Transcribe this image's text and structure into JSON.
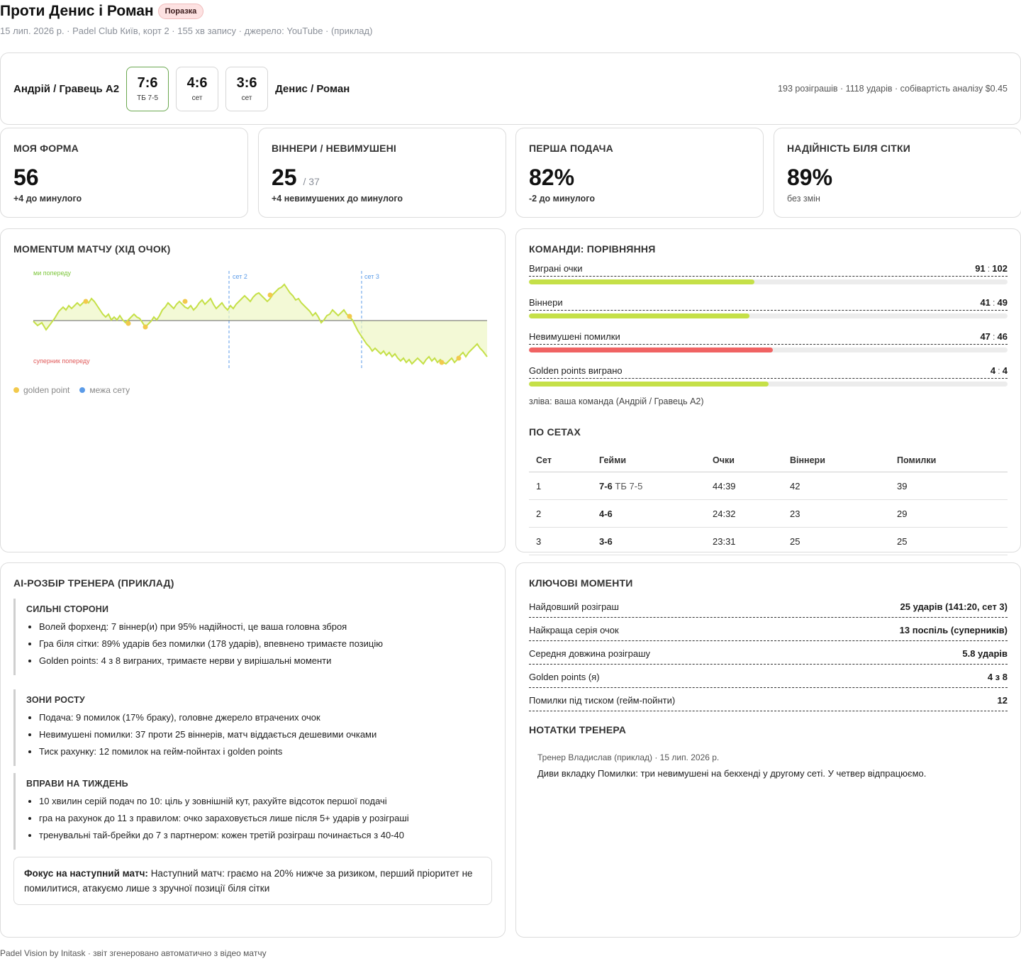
{
  "header": {
    "title": "Проти Денис і Роман",
    "result_badge": "Поразка",
    "subtitle": "15 лип. 2026 р. · Padel Club Київ, корт 2 · 155 хв запису · джерело: YouTube · (приклад)"
  },
  "score": {
    "team_left": "Андрій / Гравець A2",
    "team_right": "Денис / Роман",
    "sets": [
      {
        "score": "7:6",
        "label": "ТБ 7-5",
        "won": true
      },
      {
        "score": "4:6",
        "label": "сет",
        "won": false
      },
      {
        "score": "3:6",
        "label": "сет",
        "won": false
      }
    ],
    "stats": "193 розіграшів · 1118 ударів · собівартість аналізу $0.45"
  },
  "kpis": [
    {
      "title": "Моя форма",
      "value": "56",
      "of": "",
      "delta": "+4 до минулого"
    },
    {
      "title": "Віннери / невимушені",
      "value": "25",
      "of": "/ 37",
      "delta": "+4 невимушених до минулого"
    },
    {
      "title": "Перша подача",
      "value": "82%",
      "of": "",
      "delta": "-2 до минулого"
    },
    {
      "title": "Надійність біля сітки",
      "value": "89%",
      "of": "",
      "delta": "без змін"
    }
  ],
  "momentum": {
    "title": "Momentum матчу (хід очок)",
    "label_top": "ми попереду",
    "label_bottom": "суперник попереду",
    "set_labels": [
      "сет 2",
      "сет 3"
    ],
    "legend_golden": "golden point",
    "legend_set": "межа сету",
    "colors": {
      "line": "#c5e048",
      "fill": "#eef7c4",
      "golden": "#f2c94c",
      "set_line": "#5b9be8",
      "baseline": "#666666"
    }
  },
  "comparison": {
    "title": "Команди: порівняння",
    "rows": [
      {
        "label": "Виграні очки",
        "left": "91",
        "right": "102",
        "share": 0.471,
        "color": "#c5e048"
      },
      {
        "label": "Віннери",
        "left": "41",
        "right": "49",
        "share": 0.461,
        "color": "#c5e048"
      },
      {
        "label": "Невимушені помилки",
        "left": "47",
        "right": "46",
        "share": 0.51,
        "color": "#f06363"
      },
      {
        "label": "Golden points виграно",
        "left": "4",
        "right": "4",
        "share": 0.5,
        "color": "#c5e048"
      }
    ],
    "note": "зліва: ваша команда (Андрій / Гравець A2)",
    "sets_title": "По сетах",
    "table_headers": [
      "Сет",
      "Гейми",
      "Очки",
      "Віннери",
      "Помилки"
    ],
    "table_rows": [
      {
        "set": "1",
        "games": "7-6",
        "tb": "ТБ 7-5",
        "points": "44:39",
        "winners": "42",
        "errors": "39"
      },
      {
        "set": "2",
        "games": "4-6",
        "tb": "",
        "points": "24:32",
        "winners": "23",
        "errors": "29"
      },
      {
        "set": "3",
        "games": "3-6",
        "tb": "",
        "points": "23:31",
        "winners": "25",
        "errors": "25"
      }
    ]
  },
  "ai_review": {
    "title": "AI-розбір тренера (приклад)",
    "blocks": [
      {
        "title": "Сильні сторони",
        "items": [
          "Волей форхенд: 7 віннер(и) при 95% надійності, це ваша головна зброя",
          "Гра біля сітки: 89% ударів без помилки (178 ударів), впевнено тримаєте позицію",
          "Golden points: 4 з 8 виграних, тримаєте нерви у вирішальні моменти"
        ]
      },
      {
        "title": "Зони росту",
        "items": [
          "Подача: 9 помилок (17% браку), головне джерело втрачених очок",
          "Невимушені помилки: 37 проти 25 віннерів, матч віддається дешевими очками",
          "Тиск рахунку: 12 помилок на гейм-пойнтах і golden points"
        ]
      },
      {
        "title": "Вправи на тиждень",
        "items": [
          "10 хвилин серій подач по 10: ціль у зовнішній кут, рахуйте відсоток першої подачі",
          "гра на рахунок до 11 з правилом: очко зараховується лише після 5+ ударів у розіграші",
          "тренувальні тай-брейки до 7 з партнером: кожен третій розіграш починається з 40-40"
        ]
      }
    ],
    "focus_label": "Фокус на наступний матч:",
    "focus_text": "Наступний матч: граємо на 20% нижче за ризиком, перший пріоритет не помилитися, атакуємо лише з зручної позиції біля сітки"
  },
  "key_moments": {
    "title": "Ключові моменти",
    "rows": [
      {
        "label": "Найдовший розіграш",
        "value": "25 ударів (141:20, сет 3)"
      },
      {
        "label": "Найкраща серія очок",
        "value": "13 поспіль (суперників)"
      },
      {
        "label": "Середня довжина розіграшу",
        "value": "5.8 ударів"
      },
      {
        "label": "Golden points (я)",
        "value": "4 з 8"
      },
      {
        "label": "Помилки під тиском (гейм-пойнти)",
        "value": "12"
      }
    ],
    "notes_title": "Нотатки тренера",
    "note_meta": "Тренер Владислав (приклад) · 15 лип. 2026 р.",
    "note_text": "Диви вкладку Помилки: три невимушені на бекхенді у другому сеті. У четвер відпрацюємо."
  },
  "footer": "Padel Vision by Initask · звіт згенеровано автоматично з відео матчу"
}
